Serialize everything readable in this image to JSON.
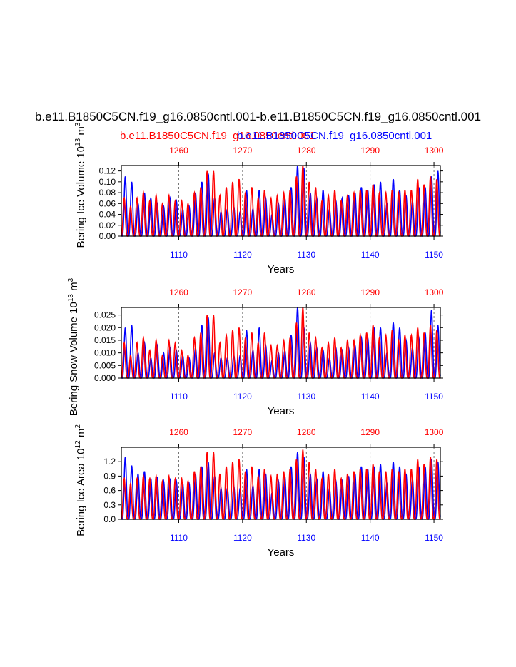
{
  "figure": {
    "main_title": "b.e11.B1850C5CN.f19_g16.0850cntl.001-b.e11.B1850C5CN.f19_g16.0850cntl.001",
    "legend": [
      {
        "name": "b.e11.B1850C5CN.f19_g16.0850cntl.001",
        "color": "#ff0000"
      },
      {
        "name": "b.e11.B1850C5CN.f19_g16.0850cntl.001",
        "color": "#0000ff"
      }
    ],
    "x_label": "Years"
  },
  "chart_data": [
    {
      "type": "line",
      "ylabel": "Bering Ice Volume 10^13 m^3",
      "ylabel_main": "Bering Ice Volume 10",
      "ylabel_exp": "13",
      "ylabel_unit": " m",
      "ylabel_unit_exp": "3",
      "xlabel": "Years",
      "ylim": [
        0,
        0.13
      ],
      "yticks": [
        0.0,
        0.02,
        0.04,
        0.06,
        0.08,
        0.1,
        0.12
      ],
      "ytick_labels": [
        "0.00",
        "0.02",
        "0.04",
        "0.06",
        "0.08",
        "0.10",
        "0.12"
      ],
      "bottom_xlim": [
        1101,
        1151
      ],
      "bottom_xticks": [
        "1110",
        "1120",
        "1130",
        "1140",
        "1150"
      ],
      "top_xlim": [
        1251,
        1301
      ],
      "top_xticks": [
        "1260",
        "1270",
        "1280",
        "1290",
        "1300"
      ],
      "series": [
        {
          "name": "blue",
          "color": "#0000ff",
          "peaks": [
            0.11,
            0.1,
            0.06,
            0.08,
            0.07,
            0.06,
            0.055,
            0.07,
            0.065,
            0.05,
            0.055,
            0.08,
            0.1,
            0.115,
            0.07,
            0.045,
            0.05,
            0.055,
            0.045,
            0.085,
            0.05,
            0.085,
            0.07,
            0.04,
            0.06,
            0.07,
            0.09,
            0.13,
            0.125,
            0.08,
            0.07,
            0.085,
            0.05,
            0.065,
            0.07,
            0.075,
            0.08,
            0.09,
            0.085,
            0.095,
            0.1,
            0.06,
            0.105,
            0.085,
            0.075,
            0.065,
            0.09,
            0.09,
            0.11,
            0.12
          ]
        },
        {
          "name": "red",
          "color": "#ff0000",
          "peaks": [
            0.07,
            0.055,
            0.07,
            0.08,
            0.065,
            0.075,
            0.06,
            0.075,
            0.065,
            0.065,
            0.06,
            0.08,
            0.09,
            0.12,
            0.12,
            0.075,
            0.09,
            0.1,
            0.105,
            0.08,
            0.09,
            0.07,
            0.085,
            0.07,
            0.075,
            0.08,
            0.085,
            0.11,
            0.13,
            0.1,
            0.09,
            0.065,
            0.075,
            0.085,
            0.065,
            0.075,
            0.08,
            0.085,
            0.085,
            0.095,
            0.08,
            0.08,
            0.085,
            0.08,
            0.085,
            0.085,
            0.105,
            0.095,
            0.11,
            0.105
          ]
        }
      ]
    },
    {
      "type": "line",
      "ylabel": "Bering Snow Volume 10^13 m^3",
      "ylabel_main": "Bering Snow Volume 10",
      "ylabel_exp": "13",
      "ylabel_unit": " m",
      "ylabel_unit_exp": "3",
      "xlabel": "Years",
      "ylim": [
        0,
        0.028
      ],
      "yticks": [
        0.0,
        0.005,
        0.01,
        0.015,
        0.02,
        0.025
      ],
      "ytick_labels": [
        "0.000",
        "0.005",
        "0.010",
        "0.015",
        "0.020",
        "0.025"
      ],
      "bottom_xlim": [
        1101,
        1151
      ],
      "bottom_xticks": [
        "1110",
        "1120",
        "1130",
        "1140",
        "1150"
      ],
      "top_xlim": [
        1251,
        1301
      ],
      "top_xticks": [
        "1260",
        "1270",
        "1280",
        "1290",
        "1300"
      ],
      "series": [
        {
          "name": "blue",
          "color": "#0000ff",
          "peaks": [
            0.02,
            0.021,
            0.01,
            0.014,
            0.008,
            0.013,
            0.01,
            0.012,
            0.011,
            0.009,
            0.008,
            0.012,
            0.021,
            0.024,
            0.01,
            0.008,
            0.008,
            0.009,
            0.009,
            0.019,
            0.011,
            0.02,
            0.013,
            0.007,
            0.01,
            0.011,
            0.017,
            0.028,
            0.02,
            0.014,
            0.012,
            0.011,
            0.008,
            0.012,
            0.011,
            0.012,
            0.013,
            0.016,
            0.016,
            0.02,
            0.02,
            0.01,
            0.022,
            0.02,
            0.015,
            0.012,
            0.016,
            0.018,
            0.027,
            0.021
          ]
        },
        {
          "name": "red",
          "color": "#ff0000",
          "peaks": [
            0.014,
            0.009,
            0.014,
            0.016,
            0.011,
            0.015,
            0.009,
            0.015,
            0.014,
            0.011,
            0.009,
            0.016,
            0.018,
            0.025,
            0.025,
            0.014,
            0.017,
            0.019,
            0.02,
            0.016,
            0.018,
            0.014,
            0.018,
            0.013,
            0.013,
            0.015,
            0.016,
            0.022,
            0.028,
            0.018,
            0.016,
            0.012,
            0.014,
            0.016,
            0.012,
            0.015,
            0.015,
            0.017,
            0.018,
            0.021,
            0.016,
            0.017,
            0.019,
            0.015,
            0.017,
            0.017,
            0.02,
            0.018,
            0.021,
            0.019
          ]
        }
      ]
    },
    {
      "type": "line",
      "ylabel": "Bering Ice Area 10^12 m^2",
      "ylabel_main": "Bering Ice Area 10",
      "ylabel_exp": "12",
      "ylabel_unit": " m",
      "ylabel_unit_exp": "2",
      "xlabel": "Years",
      "ylim": [
        0,
        1.5
      ],
      "yticks": [
        0.0,
        0.3,
        0.6,
        0.9,
        1.2
      ],
      "ytick_labels": [
        "0.0",
        "0.3",
        "0.6",
        "0.9",
        "1.2"
      ],
      "bottom_xlim": [
        1101,
        1151
      ],
      "bottom_xticks": [
        "1110",
        "1120",
        "1130",
        "1140",
        "1150"
      ],
      "top_xlim": [
        1251,
        1301
      ],
      "top_xticks": [
        "1260",
        "1270",
        "1280",
        "1290",
        "1300"
      ],
      "series": [
        {
          "name": "blue",
          "color": "#0000ff",
          "peaks": [
            1.3,
            1.12,
            0.95,
            1.0,
            0.85,
            0.88,
            0.8,
            0.85,
            0.8,
            0.75,
            0.75,
            0.95,
            1.1,
            1.2,
            0.9,
            0.65,
            0.65,
            0.7,
            0.65,
            1.05,
            0.7,
            1.05,
            0.95,
            0.55,
            0.8,
            0.9,
            1.1,
            1.4,
            1.3,
            0.95,
            0.85,
            1.0,
            0.65,
            0.8,
            0.8,
            0.9,
            0.95,
            1.1,
            1.05,
            1.1,
            1.15,
            0.75,
            1.2,
            1.1,
            0.95,
            0.85,
            1.1,
            1.1,
            1.25,
            1.2
          ]
        },
        {
          "name": "red",
          "color": "#ff0000",
          "peaks": [
            0.85,
            0.75,
            0.85,
            0.9,
            0.85,
            0.9,
            0.8,
            0.9,
            0.85,
            0.85,
            0.8,
            1.0,
            1.1,
            1.4,
            1.4,
            0.95,
            1.1,
            1.2,
            1.25,
            1.0,
            1.1,
            0.9,
            1.05,
            0.9,
            0.95,
            1.0,
            1.05,
            1.25,
            1.45,
            1.2,
            1.05,
            0.85,
            0.95,
            1.05,
            0.85,
            0.95,
            1.0,
            1.05,
            1.05,
            1.15,
            1.0,
            1.0,
            1.05,
            1.0,
            1.05,
            1.05,
            1.25,
            1.15,
            1.3,
            1.25
          ]
        }
      ]
    }
  ]
}
